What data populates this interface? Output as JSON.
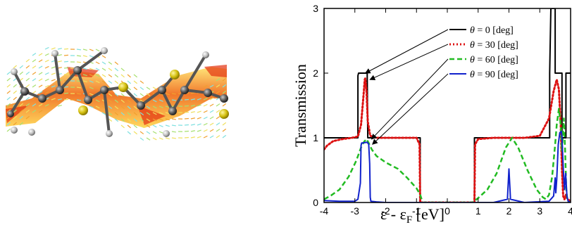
{
  "chart_data": {
    "type": "line",
    "title": "",
    "xlabel": "ε - ε_F [eV]",
    "ylabel": "Transmission",
    "xlim": [
      -4,
      4
    ],
    "ylim": [
      0,
      3
    ],
    "xticks": [
      "-4",
      "-3",
      "-2",
      "-1",
      "0",
      "1",
      "2",
      "3",
      "4"
    ],
    "yticks": [
      "0",
      "1",
      "2",
      "3"
    ],
    "legend_position": "top-right",
    "series": [
      {
        "name": "θ = 0 [deg]",
        "color": "#000000",
        "dash": "solid",
        "x": [
          -4,
          -2.9,
          -2.9,
          -2.88,
          -2.88,
          -2.6,
          -2.6,
          -2.58,
          -2.58,
          -0.88,
          -0.88,
          0.88,
          0.88,
          3.32,
          3.32,
          3.36,
          3.36,
          3.5,
          3.5,
          3.72,
          3.72,
          3.85,
          3.85,
          4
        ],
        "y": [
          1,
          1,
          1.96,
          2,
          2,
          2,
          1.96,
          1,
          1,
          1,
          0,
          0,
          1,
          1,
          2,
          3,
          3,
          3,
          2,
          2,
          1,
          1,
          2,
          2
        ]
      },
      {
        "name": "θ = 30 [deg]",
        "color": "#dd1111",
        "dash": "dot",
        "x": [
          -4,
          -3.9,
          -3.7,
          -3.4,
          -3.1,
          -2.9,
          -2.8,
          -2.72,
          -2.68,
          -2.66,
          -2.62,
          -2.58,
          -2.5,
          -2.3,
          -2.0,
          -1.5,
          -1.0,
          -0.9,
          -0.88,
          0.88,
          0.9,
          1.0,
          1.5,
          2.0,
          2.5,
          3.0,
          3.3,
          3.45,
          3.55,
          3.62,
          3.68,
          3.72,
          3.76,
          3.8,
          3.85,
          3.9,
          4
        ],
        "y": [
          0.82,
          0.88,
          0.95,
          0.98,
          1,
          1.02,
          1.2,
          1.65,
          1.9,
          1.92,
          1.7,
          1.25,
          1.03,
          1,
          1,
          1,
          1,
          0.9,
          0,
          0,
          0.9,
          0.98,
          1,
          1,
          1,
          1.03,
          1.3,
          1.72,
          1.9,
          1.75,
          1.2,
          0.5,
          0.1,
          0.05,
          0.12,
          0.05,
          0.02
        ]
      },
      {
        "name": "θ = 60 [deg]",
        "color": "#22bb22",
        "dash": "dash",
        "x": [
          -4,
          -3.8,
          -3.5,
          -3.2,
          -2.95,
          -2.8,
          -2.7,
          -2.62,
          -2.55,
          -2.45,
          -2.3,
          -2.0,
          -1.6,
          -1.3,
          -1.0,
          -0.88,
          -0.8,
          0.8,
          0.9,
          1.0,
          1.3,
          1.6,
          1.9,
          2.1,
          2.3,
          2.6,
          2.9,
          3.1,
          3.2,
          3.3,
          3.4,
          3.5,
          3.55,
          3.62,
          3.68,
          3.72,
          3.78,
          3.82,
          3.86,
          3.9,
          4
        ],
        "y": [
          0.05,
          0.1,
          0.2,
          0.4,
          0.65,
          0.85,
          0.94,
          0.98,
          0.92,
          0.82,
          0.72,
          0.62,
          0.52,
          0.38,
          0.22,
          0.12,
          0,
          0,
          0.03,
          0.07,
          0.2,
          0.45,
          0.85,
          1,
          0.85,
          0.5,
          0.2,
          0.08,
          0.05,
          0.12,
          0.4,
          0.9,
          1.2,
          1.45,
          1.2,
          0.8,
          1.3,
          0.85,
          0.2,
          0.02,
          0
        ]
      },
      {
        "name": "θ = 90 [deg]",
        "color": "#1122cc",
        "dash": "solid",
        "x": [
          -4,
          -3.5,
          -3.0,
          -2.9,
          -2.82,
          -2.8,
          -2.78,
          -2.6,
          -2.55,
          -2.52,
          -2.5,
          -2.48,
          -2.3,
          -2.0,
          0,
          1.5,
          1.95,
          2.0,
          2.05,
          2.5,
          3.3,
          3.45,
          3.5,
          3.52,
          3.55,
          3.6,
          3.65,
          3.7,
          3.72,
          3.76,
          3.8,
          3.84,
          3.88,
          3.92,
          4
        ],
        "y": [
          0.03,
          0.02,
          0.02,
          0.05,
          0.3,
          0.88,
          0.92,
          0.93,
          0.9,
          0.6,
          0.08,
          0.02,
          0.01,
          0,
          0,
          0,
          0.05,
          0.52,
          0.05,
          0,
          0.02,
          0.1,
          0.38,
          0.15,
          0.35,
          0.9,
          1.08,
          1.1,
          1.0,
          0.55,
          0.2,
          0.45,
          0.1,
          0.02,
          0
        ]
      }
    ],
    "annotations": [
      {
        "type": "arrow",
        "from_legend": "θ = 0 [deg]",
        "to": [
          -2.75,
          2.0
        ]
      },
      {
        "type": "arrow",
        "from_legend": "θ = 30 [deg]",
        "to": [
          -2.6,
          1.9
        ]
      },
      {
        "type": "arrow",
        "from_legend": "θ = 60 [deg]",
        "to": [
          -2.55,
          0.98
        ]
      },
      {
        "type": "arrow",
        "from_legend": "θ = 90 [deg]",
        "to": [
          -2.52,
          0.9
        ]
      }
    ]
  }
}
